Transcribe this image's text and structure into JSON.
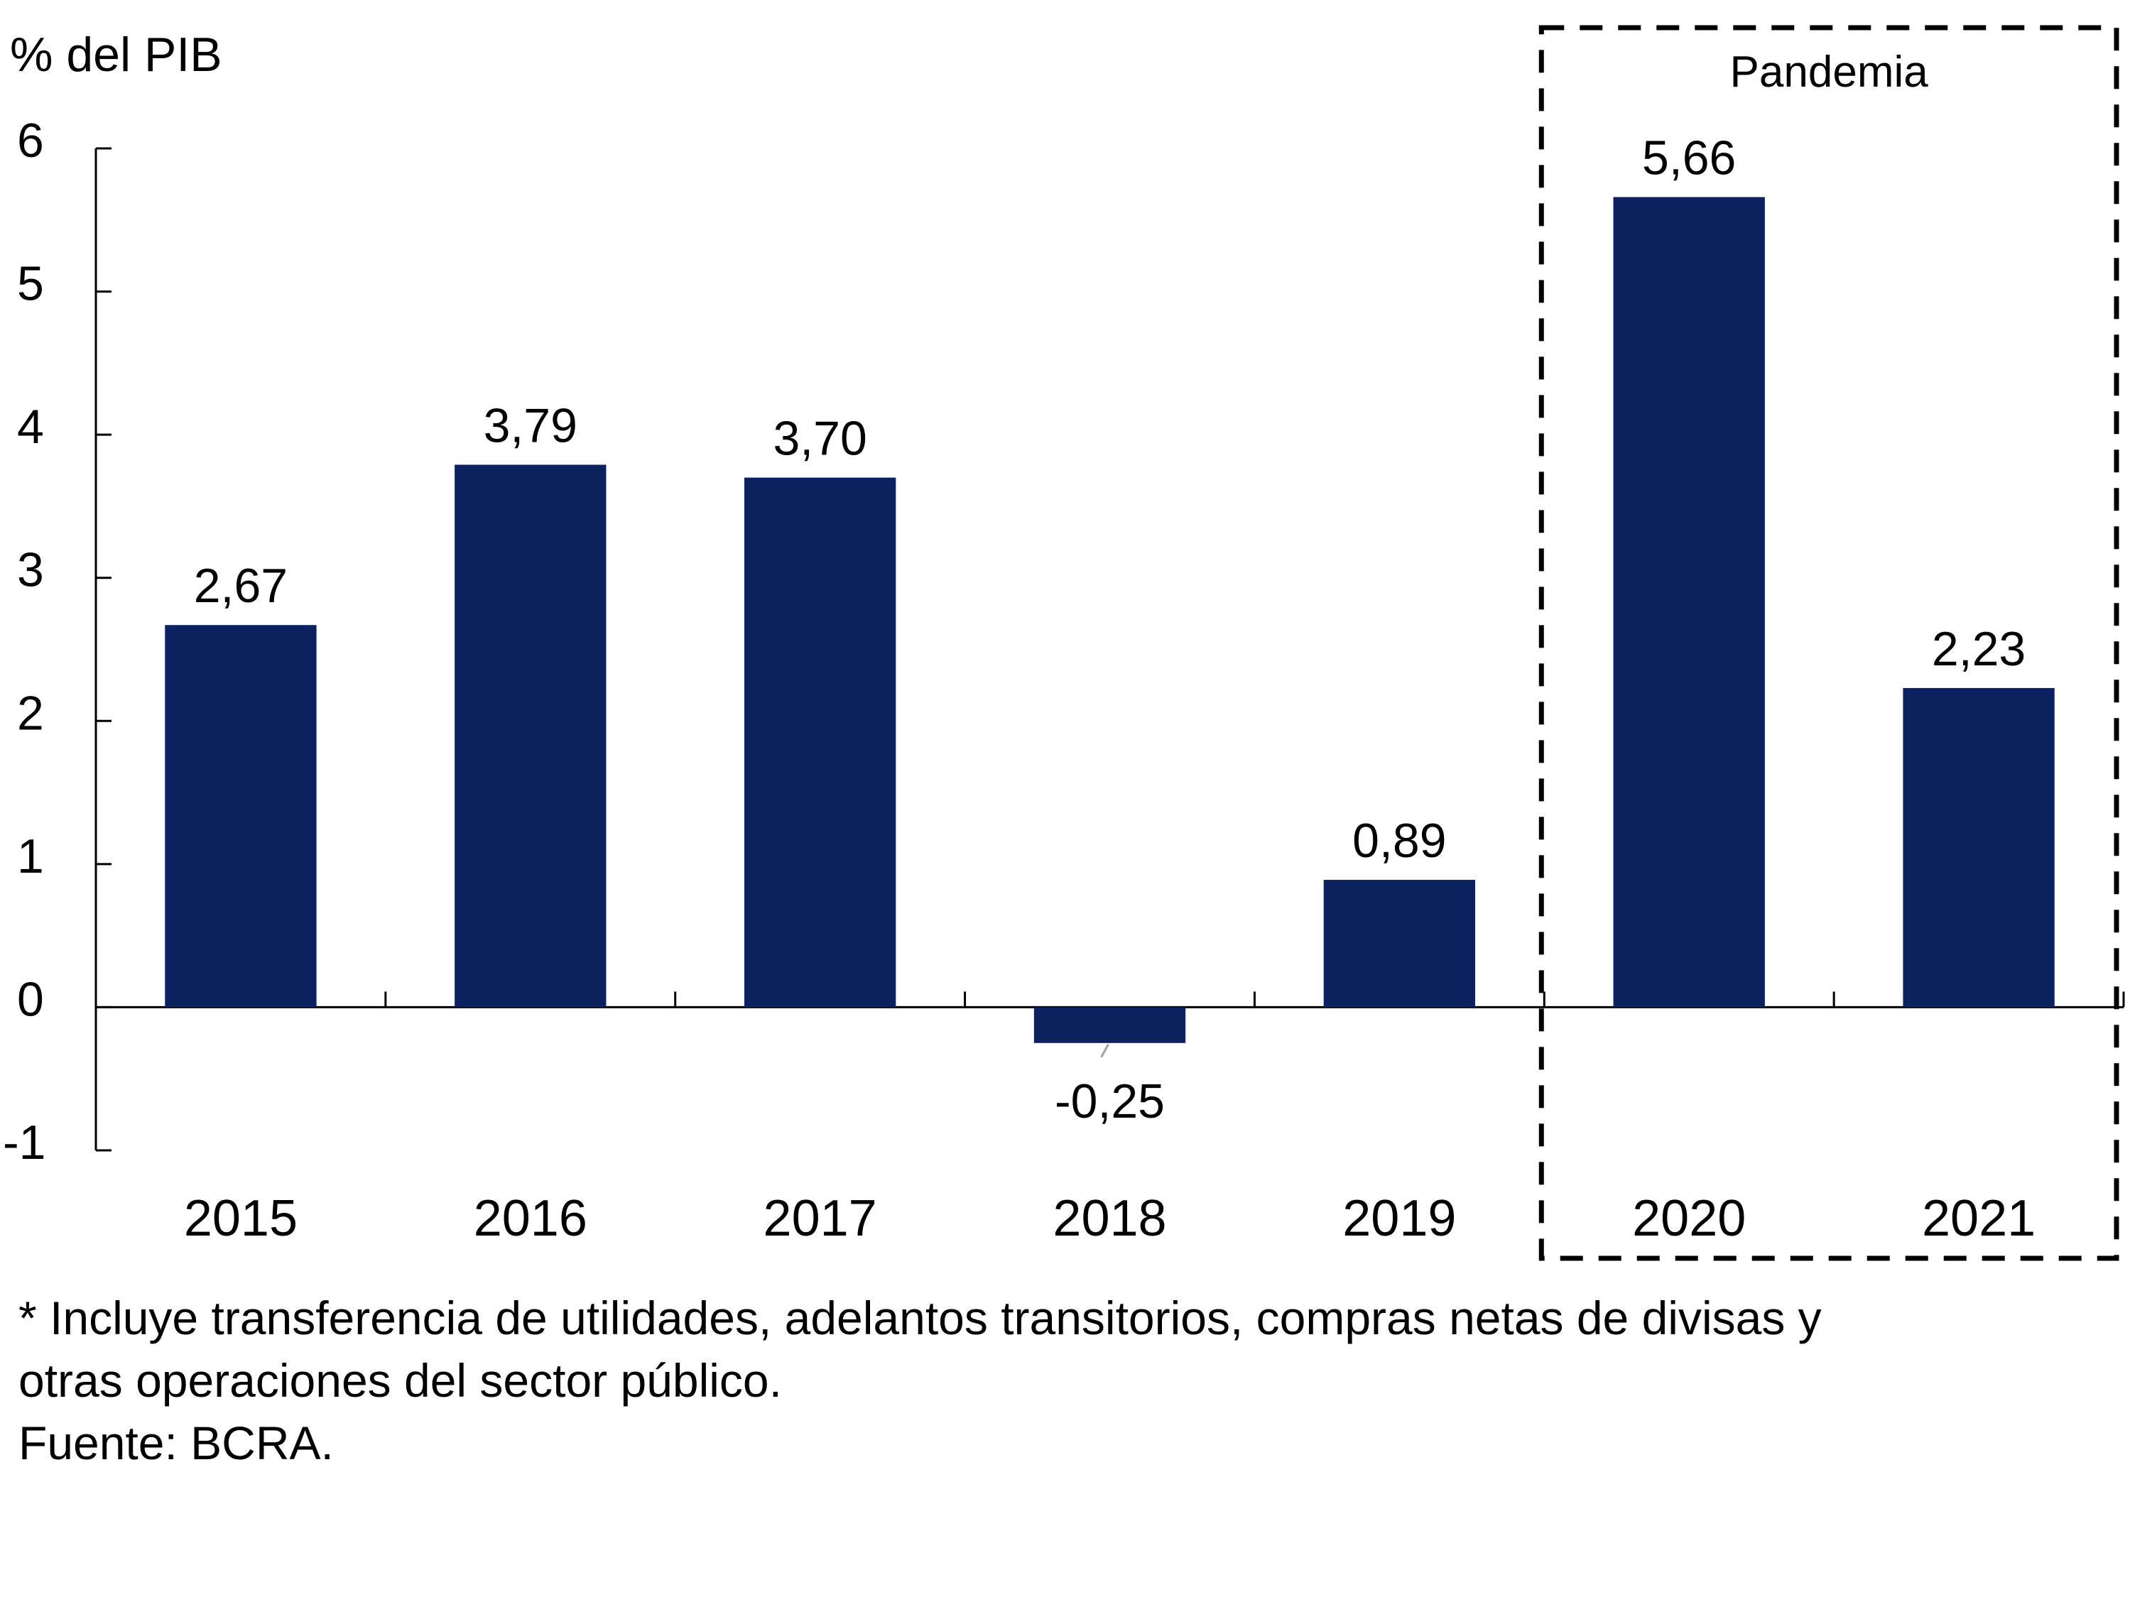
{
  "chart_data": {
    "type": "bar",
    "title": "",
    "ylabel": "% del PIB",
    "xlabel": "",
    "categories": [
      "2015",
      "2016",
      "2017",
      "2018",
      "2019",
      "2020",
      "2021"
    ],
    "values": [
      2.67,
      3.79,
      3.7,
      -0.25,
      0.89,
      5.66,
      2.23
    ],
    "data_labels": [
      "2,67",
      "3,79",
      "3,70",
      "-0,25",
      "0,89",
      "5,66",
      "2,23"
    ],
    "ylim": [
      -1,
      6
    ],
    "yticks": [
      -1,
      0,
      1,
      2,
      3,
      4,
      5,
      6
    ],
    "ytick_labels": [
      "-1",
      "0",
      "1",
      "2",
      "3",
      "4",
      "5",
      "6"
    ],
    "grid": false,
    "legend": null,
    "bar_color": "#0b2160",
    "annotations": [
      {
        "text": "Pandemia",
        "type": "dashed-box",
        "spans_categories": [
          "2020",
          "2021"
        ]
      }
    ]
  },
  "footnote": {
    "lines": [
      "* Incluye transferencia de utilidades, adelantos transitorios, compras netas de divisas y",
      "otras operaciones del sector público.",
      "Fuente: BCRA."
    ]
  }
}
